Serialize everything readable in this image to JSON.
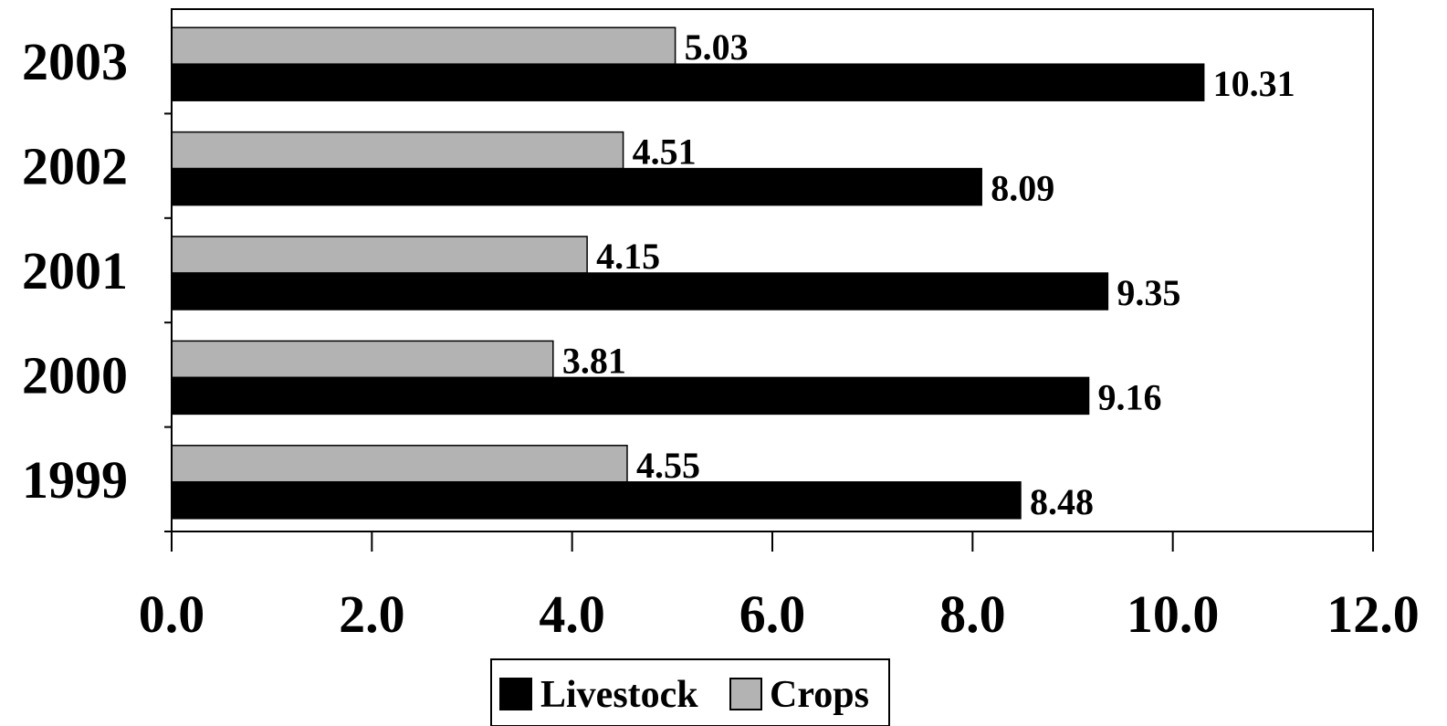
{
  "chart_data": {
    "type": "bar",
    "orientation": "horizontal",
    "categories": [
      "2003",
      "2002",
      "2001",
      "2000",
      "1999"
    ],
    "series": [
      {
        "name": "Crops",
        "values": [
          5.03,
          4.51,
          4.15,
          3.81,
          4.55
        ],
        "value_labels": [
          "5.03",
          "4.51",
          "4.15",
          "3.81",
          "4.55"
        ],
        "color": "#b3b3b3"
      },
      {
        "name": "Livestock",
        "values": [
          10.31,
          8.09,
          9.35,
          9.16,
          8.48
        ],
        "value_labels": [
          "10.31",
          "8.09",
          "9.35",
          "9.16",
          "8.48"
        ],
        "color": "#000000"
      }
    ],
    "xlim": [
      0,
      12
    ],
    "x_ticks": [
      0,
      2,
      4,
      6,
      8,
      10,
      12
    ],
    "x_tick_labels": [
      "0.0",
      "2.0",
      "4.0",
      "6.0",
      "8.0",
      "10.0",
      "12.0"
    ],
    "title": "",
    "xlabel": "",
    "ylabel": "",
    "grid": false,
    "legend": {
      "placement": "bottom-center",
      "entries": [
        {
          "label": "Livestock",
          "color": "#000000"
        },
        {
          "label": "Crops",
          "color": "#b3b3b3"
        }
      ]
    }
  }
}
